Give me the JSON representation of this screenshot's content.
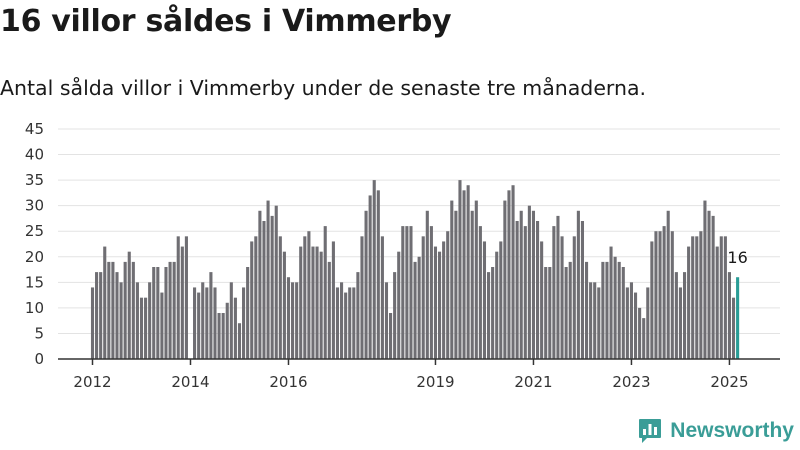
{
  "chart_data": {
    "type": "bar",
    "title": "16 villor såldes i Vimmerby",
    "subtitle": "Antal sålda villor i Vimmerby under de senaste tre månaderna.",
    "xlabel": "",
    "ylabel": "",
    "ylim": [
      0,
      45
    ],
    "yticks": [
      0,
      5,
      10,
      15,
      20,
      25,
      30,
      35,
      40,
      45
    ],
    "xticks": [
      "2012",
      "2014",
      "2016",
      "2019",
      "2021",
      "2023",
      "2025"
    ],
    "grid": true,
    "values": [
      14,
      17,
      17,
      22,
      19,
      19,
      17,
      15,
      19,
      21,
      19,
      15,
      12,
      12,
      15,
      18,
      18,
      13,
      18,
      19,
      19,
      24,
      22,
      24,
      0,
      14,
      13,
      15,
      14,
      17,
      14,
      9,
      9,
      11,
      15,
      12,
      7,
      14,
      18,
      23,
      24,
      29,
      27,
      31,
      28,
      30,
      24,
      21,
      16,
      15,
      15,
      22,
      24,
      25,
      22,
      22,
      21,
      26,
      19,
      23,
      14,
      15,
      13,
      14,
      14,
      17,
      24,
      29,
      32,
      35,
      33,
      24,
      15,
      9,
      17,
      21,
      26,
      26,
      26,
      19,
      20,
      24,
      29,
      26,
      22,
      21,
      23,
      25,
      31,
      29,
      35,
      33,
      34,
      29,
      31,
      26,
      23,
      17,
      18,
      21,
      23,
      31,
      33,
      34,
      27,
      29,
      26,
      30,
      29,
      27,
      23,
      18,
      18,
      26,
      28,
      24,
      18,
      19,
      24,
      29,
      27,
      19,
      15,
      15,
      14,
      19,
      19,
      22,
      20,
      19,
      18,
      14,
      15,
      13,
      10,
      8,
      14,
      23,
      25,
      25,
      26,
      29,
      25,
      17,
      14,
      17,
      22,
      24,
      24,
      25,
      31,
      29,
      28,
      22,
      24,
      24,
      17,
      12,
      16
    ],
    "highlight_last": true,
    "last_value_label": "16",
    "colors": {
      "bar": "#6f6e73",
      "highlight": "#2a9d96"
    }
  },
  "brand": {
    "name": "Newsworthy",
    "icon": "newsworthy-logo-icon"
  }
}
